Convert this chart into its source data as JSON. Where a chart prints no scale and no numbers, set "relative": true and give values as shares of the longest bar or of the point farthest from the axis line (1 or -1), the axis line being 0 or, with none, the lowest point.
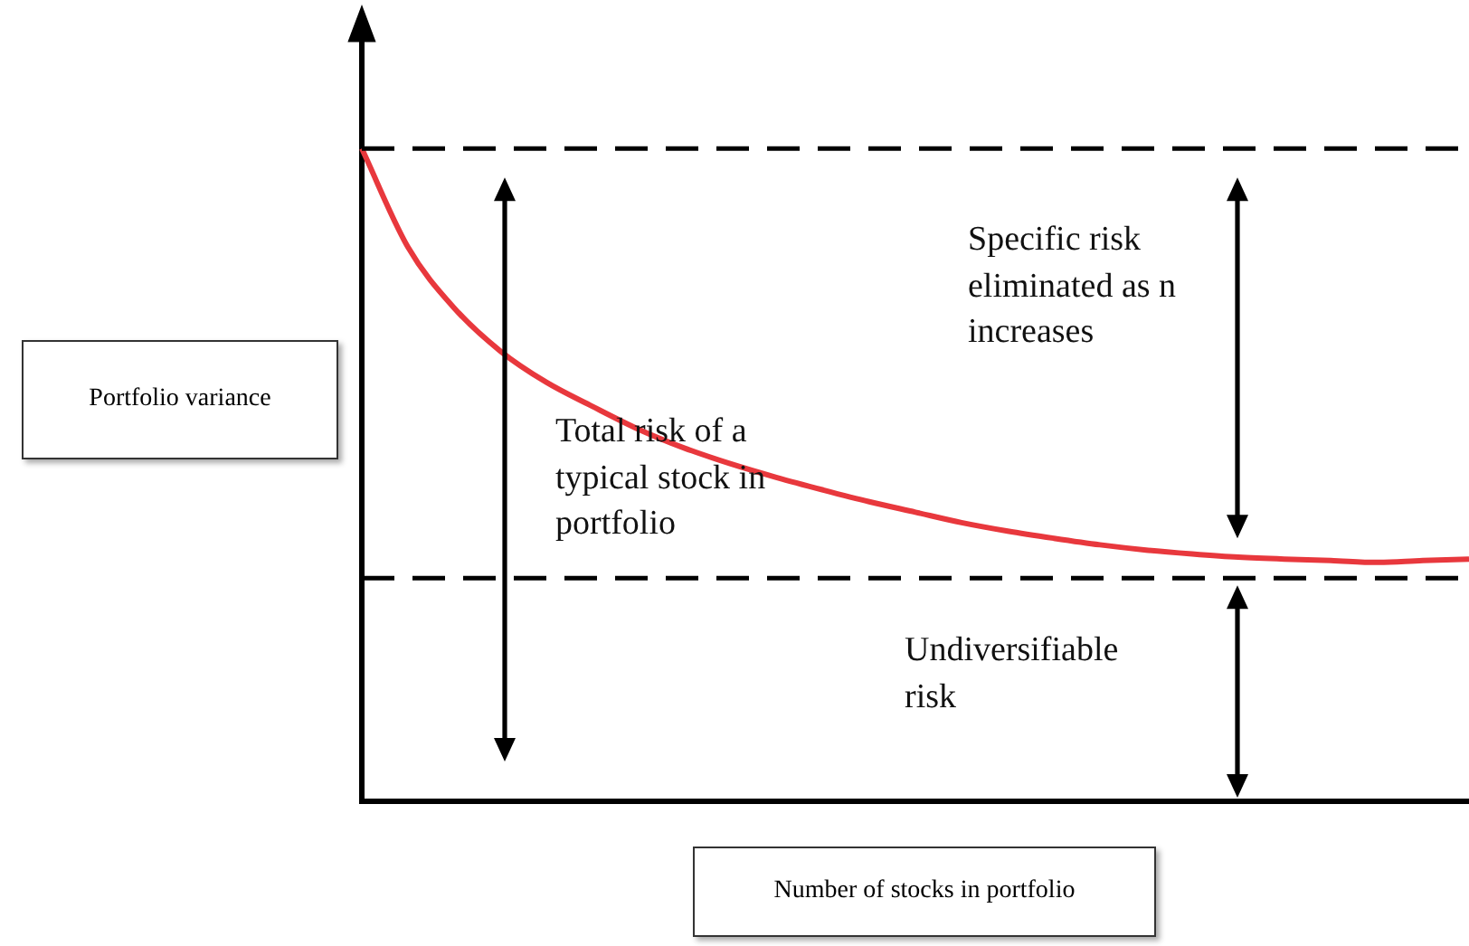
{
  "chart_data": {
    "type": "line",
    "relative": true,
    "xlabel": "Number of stocks in portfolio",
    "ylabel": "Portfolio variance",
    "categories": [
      null,
      null,
      null,
      null,
      null,
      null,
      null,
      null,
      null,
      null,
      null,
      null,
      null,
      null,
      null,
      null,
      null,
      null,
      null,
      null,
      null,
      null,
      null,
      null,
      null
    ],
    "series": [
      {
        "color": "#e8383d",
        "values": [
          1.0,
          0.849,
          0.756,
          0.69,
          0.642,
          0.605,
          0.57,
          0.541,
          0.517,
          0.496,
          0.477,
          0.459,
          0.443,
          0.427,
          0.414,
          0.403,
          0.393,
          0.385,
          0.379,
          0.374,
          0.371,
          0.369,
          0.366,
          0.369,
          0.371
        ]
      }
    ],
    "ref_lines": [
      {
        "axis": "y",
        "value": 1,
        "color": "#000000",
        "line_style": "dashed"
      },
      {
        "axis": "y",
        "value": 0.342,
        "color": "#000000",
        "line_style": "dashed"
      }
    ],
    "annotations": [
      "Total risk of a typical stock in portfolio",
      "Specific risk eliminated as n increases",
      "Undiversifiable risk"
    ],
    "marker": "none",
    "line_style": "solid",
    "legend": false
  }
}
